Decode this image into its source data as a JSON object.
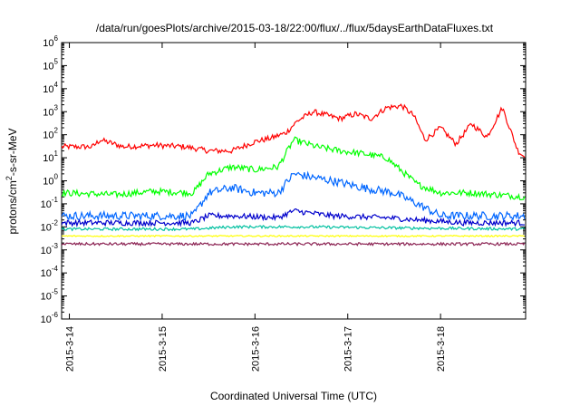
{
  "chart_data": {
    "type": "line",
    "title": "/data/run/goesPlots/archive/2015-03-18/22:00/flux/../flux/5daysEarthDataFluxes.txt",
    "xlabel": "Coordinated Universal Time (UTC)",
    "ylabel_parts": {
      "base": "protons/cm",
      "sup": "2",
      "rest": "-s-sr-MeV"
    },
    "y_scale": "log",
    "ylim": [
      1e-06,
      1000000.0
    ],
    "y_ticks": [
      {
        "value": 1e-06,
        "base": "10",
        "exp": "-6"
      },
      {
        "value": 1e-05,
        "base": "10",
        "exp": "-5"
      },
      {
        "value": 0.0001,
        "base": "10",
        "exp": "-4"
      },
      {
        "value": 0.001,
        "base": "10",
        "exp": "-3"
      },
      {
        "value": 0.01,
        "base": "10",
        "exp": "-2"
      },
      {
        "value": 0.1,
        "base": "10",
        "exp": "-1"
      },
      {
        "value": 1.0,
        "base": "10",
        "exp": "0"
      },
      {
        "value": 10.0,
        "base": "10",
        "exp": "1"
      },
      {
        "value": 100.0,
        "base": "10",
        "exp": "2"
      },
      {
        "value": 1000.0,
        "base": "10",
        "exp": "3"
      },
      {
        "value": 10000.0,
        "base": "10",
        "exp": "4"
      },
      {
        "value": 100000.0,
        "base": "10",
        "exp": "5"
      },
      {
        "value": 1000000.0,
        "base": "10",
        "exp": "6"
      }
    ],
    "xlim": [
      "2015-03-13 22:00",
      "2015-03-18 22:00"
    ],
    "x_ticks": [
      "2015-3-14",
      "2015-3-15",
      "2015-3-16",
      "2015-3-17",
      "2015-3-18"
    ],
    "grid": false,
    "legend": "none",
    "series": [
      {
        "color": "#ff0000",
        "x": [
          "2015-03-13 22:00",
          "2015-03-14 06:00",
          "2015-03-14 08:00",
          "2015-03-14 14:00",
          "2015-03-14 22:00",
          "2015-03-15 06:00",
          "2015-03-15 12:00",
          "2015-03-15 18:00",
          "2015-03-16 00:00",
          "2015-03-16 04:00",
          "2015-03-16 08:00",
          "2015-03-16 11:00",
          "2015-03-16 15:00",
          "2015-03-16 22:00",
          "2015-03-17 02:00",
          "2015-03-17 06:00",
          "2015-03-17 10:00",
          "2015-03-17 14:00",
          "2015-03-17 17:00",
          "2015-03-17 20:00",
          "2015-03-18 00:00",
          "2015-03-18 04:00",
          "2015-03-18 08:00",
          "2015-03-18 12:00",
          "2015-03-18 16:00",
          "2015-03-18 20:00",
          "2015-03-18 22:00"
        ],
        "values": [
          30,
          30,
          60,
          30,
          35,
          30,
          20,
          20,
          50,
          70,
          120,
          400,
          1000,
          500,
          800,
          500,
          1500,
          1800,
          700,
          60,
          200,
          40,
          300,
          80,
          1500,
          20,
          10
        ]
      },
      {
        "color": "#00ff00",
        "x": [
          "2015-03-13 22:00",
          "2015-03-14 12:00",
          "2015-03-14 22:00",
          "2015-03-15 08:00",
          "2015-03-15 12:00",
          "2015-03-15 18:00",
          "2015-03-16 00:00",
          "2015-03-16 06:00",
          "2015-03-16 10:00",
          "2015-03-16 16:00",
          "2015-03-16 22:00",
          "2015-03-17 04:00",
          "2015-03-17 10:00",
          "2015-03-17 18:00",
          "2015-03-18 00:00",
          "2015-03-18 08:00",
          "2015-03-18 22:00"
        ],
        "values": [
          0.3,
          0.25,
          0.35,
          0.3,
          2,
          4,
          3,
          4,
          60,
          30,
          20,
          15,
          10,
          0.7,
          0.3,
          0.3,
          0.2
        ]
      },
      {
        "color": "#0066ff",
        "x": [
          "2015-03-13 22:00",
          "2015-03-14 12:00",
          "2015-03-14 22:00",
          "2015-03-15 08:00",
          "2015-03-15 12:00",
          "2015-03-15 18:00",
          "2015-03-16 00:00",
          "2015-03-16 06:00",
          "2015-03-16 10:00",
          "2015-03-16 14:00",
          "2015-03-16 20:00",
          "2015-03-17 04:00",
          "2015-03-17 12:00",
          "2015-03-17 18:00",
          "2015-03-18 00:00",
          "2015-03-18 10:00",
          "2015-03-18 22:00"
        ],
        "values": [
          0.03,
          0.03,
          0.03,
          0.03,
          0.3,
          0.5,
          0.3,
          0.3,
          2,
          1.5,
          1,
          0.5,
          0.3,
          0.1,
          0.03,
          0.03,
          0.03
        ]
      },
      {
        "color": "#0000cc",
        "x": [
          "2015-03-13 22:00",
          "2015-03-14 22:00",
          "2015-03-15 08:00",
          "2015-03-15 12:00",
          "2015-03-15 18:00",
          "2015-03-16 06:00",
          "2015-03-16 10:00",
          "2015-03-16 20:00",
          "2015-03-17 10:00",
          "2015-03-17 18:00",
          "2015-03-18 06:00",
          "2015-03-18 22:00"
        ],
        "values": [
          0.015,
          0.015,
          0.015,
          0.03,
          0.03,
          0.025,
          0.05,
          0.03,
          0.025,
          0.02,
          0.015,
          0.015
        ]
      },
      {
        "color": "#00c0a0",
        "x": [
          "2015-03-13 22:00",
          "2015-03-15 08:00",
          "2015-03-15 18:00",
          "2015-03-16 12:00",
          "2015-03-17 12:00",
          "2015-03-18 22:00"
        ],
        "values": [
          0.008,
          0.008,
          0.01,
          0.01,
          0.009,
          0.008
        ]
      },
      {
        "color": "#ffff00",
        "x": [
          "2015-03-13 22:00",
          "2015-03-15 12:00",
          "2015-03-16 12:00",
          "2015-03-18 22:00"
        ],
        "values": [
          0.004,
          0.004,
          0.004,
          0.004
        ]
      },
      {
        "color": "#8b2252",
        "x": [
          "2015-03-13 22:00",
          "2015-03-15 12:00",
          "2015-03-16 12:00",
          "2015-03-18 22:00"
        ],
        "values": [
          0.0018,
          0.0018,
          0.0018,
          0.0018
        ]
      }
    ]
  }
}
